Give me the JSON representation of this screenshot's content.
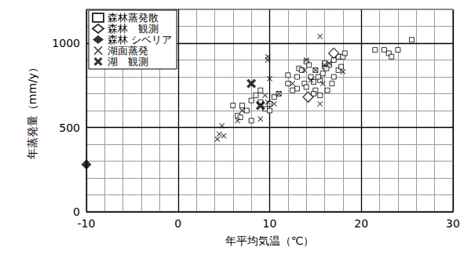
{
  "chart_data": {
    "type": "scatter",
    "x_label": "年平均気温（℃）",
    "y_label": "年蒸発量（mm/y）",
    "xlim": [
      -10,
      30
    ],
    "xticks": [
      -10,
      0,
      10,
      20,
      30
    ],
    "ylim": [
      0,
      1200
    ],
    "yticks": [
      0,
      500,
      1000
    ],
    "grid": true,
    "legend": "upper left",
    "series": [
      {
        "name": "森林蒸発散",
        "marker": "square_open",
        "color": "#000000",
        "x": [
          6,
          7,
          6.5,
          7.5,
          8.5,
          8,
          9,
          9.5,
          10,
          10.5,
          12,
          12,
          11,
          13,
          13.2,
          13.5,
          14,
          14.3,
          13.8,
          14.5,
          15,
          15.5,
          15,
          15.3,
          16,
          16,
          16.5,
          16.2,
          17,
          17.5,
          16.8,
          17,
          17.5,
          17.8,
          18,
          18.2,
          15.8,
          14.8,
          14,
          13,
          12.5,
          9,
          10,
          21.5,
          22.5,
          23,
          23.3,
          24,
          25.5,
          16.3,
          15.5,
          8,
          6.8,
          14.8
        ],
        "values": [
          630,
          630,
          570,
          600,
          690,
          660,
          650,
          610,
          640,
          680,
          810,
          760,
          700,
          800,
          850,
          840,
          890,
          870,
          760,
          800,
          840,
          780,
          720,
          800,
          860,
          880,
          870,
          850,
          900,
          920,
          760,
          800,
          840,
          860,
          920,
          940,
          820,
          770,
          740,
          730,
          720,
          720,
          600,
          960,
          960,
          940,
          920,
          960,
          1020,
          720,
          690,
          540,
          560,
          700
        ]
      },
      {
        "name": "森林　観測",
        "marker": "diamond_open",
        "color": "#000000",
        "x": [
          14.2,
          17
        ],
        "values": [
          680,
          940
        ]
      },
      {
        "name": "森林 シベリア",
        "marker": "diamond",
        "color": "#000000",
        "x": [
          -10
        ],
        "values": [
          280
        ]
      },
      {
        "name": "湖面蒸発",
        "marker": "x",
        "color": "#000000",
        "x": [
          4.3,
          4.5,
          5,
          4.8,
          6.5,
          7,
          9,
          9.8,
          9.8,
          10,
          9.5,
          11,
          10.5,
          14,
          15,
          15.5,
          15.5,
          16,
          15.8,
          14.5,
          13.8,
          16.5,
          18,
          12.5,
          9.8
        ],
        "values": [
          430,
          460,
          450,
          510,
          540,
          600,
          550,
          900,
          920,
          790,
          690,
          700,
          640,
          900,
          840,
          1040,
          640,
          870,
          760,
          780,
          840,
          880,
          830,
          760,
          650
        ]
      },
      {
        "name": "湖　観測",
        "marker": "x_bold",
        "color": "#000000",
        "x": [
          8,
          9
        ],
        "values": [
          760,
          630
        ]
      }
    ]
  }
}
